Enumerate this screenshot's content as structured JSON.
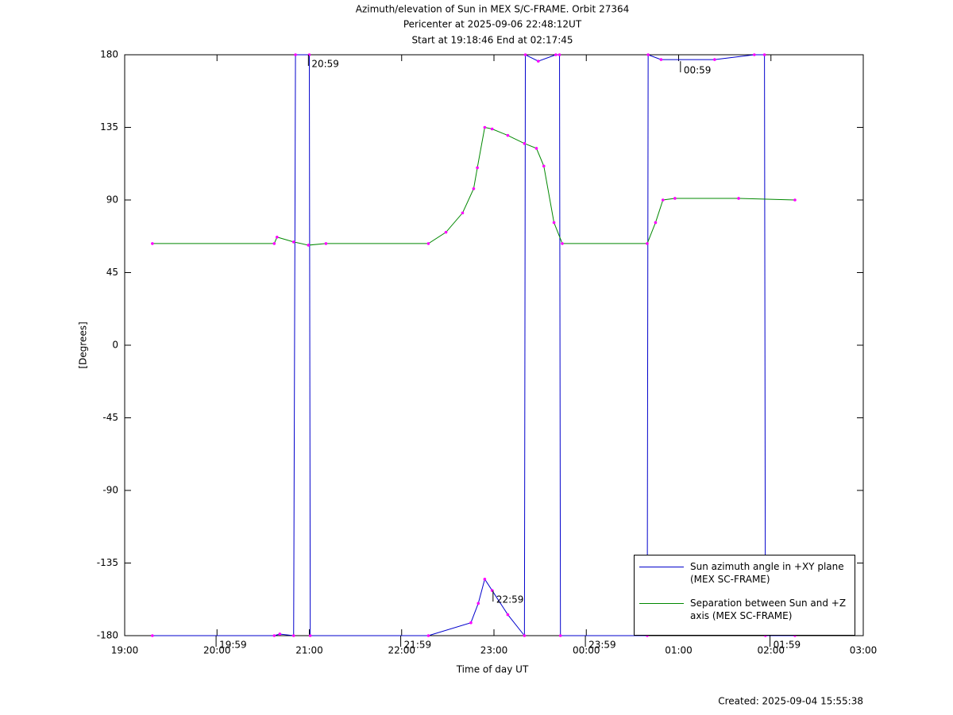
{
  "chart_data": {
    "type": "line",
    "title": "Azimuth/elevation of Sun in MEX S/C-FRAME.  Orbit 27364",
    "subtitle": "Pericenter at 2025-09-06 22:48:12UT",
    "subtitle2": "Start at 19:18:46 End at 02:17:45",
    "xlabel": "Time of day UT",
    "ylabel": "[Degrees]",
    "footer": "Created: 2025-09-04 15:55:38",
    "xlim": [
      19,
      27
    ],
    "ylim": [
      -180,
      180
    ],
    "xticks": [
      {
        "value": 19,
        "label": "19:00"
      },
      {
        "value": 20,
        "label": "20:00"
      },
      {
        "value": 21,
        "label": "21:00"
      },
      {
        "value": 22,
        "label": "22:00"
      },
      {
        "value": 23,
        "label": "23:00"
      },
      {
        "value": 24,
        "label": "00:00"
      },
      {
        "value": 25,
        "label": "01:00"
      },
      {
        "value": 26,
        "label": "02:00"
      },
      {
        "value": 27,
        "label": "03:00"
      }
    ],
    "yticks": [
      -180,
      -135,
      -90,
      -45,
      0,
      45,
      90,
      135,
      180
    ],
    "legend": "lower right",
    "series": [
      {
        "name": "Sun azimuth angle in +XY plane (MEX SC-FRAME)",
        "color": "#0000cc",
        "x": [
          19.3,
          20.62,
          20.68,
          20.83,
          20.85,
          21.0,
          21.01,
          22.29,
          22.75,
          22.83,
          22.9,
          22.98,
          23.15,
          23.33,
          23.34,
          23.48,
          23.67,
          23.71,
          23.72,
          24.66,
          24.67,
          24.81,
          25.39,
          25.82,
          25.93,
          25.94,
          26.26
        ],
        "values": [
          -180,
          -180,
          -179,
          -180,
          180,
          180,
          -180,
          -180,
          -172,
          -160,
          -145,
          -152,
          -167,
          -180,
          180,
          176,
          180,
          180,
          -180,
          -180,
          180,
          177,
          177,
          180,
          180,
          -180,
          -180
        ]
      },
      {
        "name": "Separation between Sun and +Z axis (MEX SC-FRAME)",
        "color": "#008800",
        "x": [
          19.3,
          20.62,
          20.65,
          20.83,
          20.99,
          21.18,
          22.29,
          22.48,
          22.66,
          22.78,
          22.82,
          22.9,
          22.98,
          23.15,
          23.33,
          23.46,
          23.54,
          23.65,
          23.74,
          24.66,
          24.75,
          24.83,
          24.96,
          25.65,
          26.26
        ],
        "values": [
          63,
          63,
          67,
          64,
          62,
          63,
          63,
          70,
          82,
          97,
          110,
          135,
          134,
          130,
          125,
          122,
          111,
          76,
          63,
          63,
          76,
          90,
          91,
          91,
          90
        ]
      }
    ],
    "annotations": [
      {
        "text": "20:59",
        "x": 20.99,
        "y": 180
      },
      {
        "text": "22:59",
        "x": 22.99,
        "y": -152
      },
      {
        "text": "00:59",
        "x": 25.02,
        "y": 176
      },
      {
        "text": "19:59",
        "x": 19.99,
        "y": -180
      },
      {
        "text": "21:59",
        "x": 21.99,
        "y": -180
      },
      {
        "text": "23:59",
        "x": 23.99,
        "y": -180
      },
      {
        "text": "01:59",
        "x": 25.99,
        "y": -180
      }
    ]
  }
}
